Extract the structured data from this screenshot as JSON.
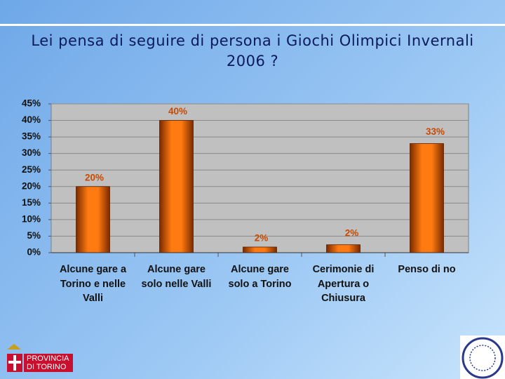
{
  "chart_data": {
    "type": "bar",
    "title": "Lei pensa di seguire di persona i Giochi Olimpici Invernali 2006 ?",
    "categories": [
      "Alcune gare a Torino e nelle Valli",
      "Alcune gare solo nelle Valli",
      "Alcune gare solo a Torino",
      "Cerimonie di Apertura o Chiusura",
      "Penso di no"
    ],
    "values": [
      20,
      40,
      1.7,
      2.4,
      33
    ],
    "value_labels": [
      "20%",
      "40%",
      "2%",
      "2%",
      "33%"
    ],
    "color": "#e8650a",
    "ylim": [
      0,
      45
    ],
    "yticks": [
      {
        "value": 0,
        "label": "0%"
      },
      {
        "value": 5,
        "label": "5%"
      },
      {
        "value": 10,
        "label": "10%"
      },
      {
        "value": 15,
        "label": "15%"
      },
      {
        "value": 20,
        "label": "20%"
      },
      {
        "value": 25,
        "label": "25%"
      },
      {
        "value": 30,
        "label": "30%"
      },
      {
        "value": 35,
        "label": "35%"
      },
      {
        "value": 40,
        "label": "40%"
      },
      {
        "value": 45,
        "label": "45%"
      }
    ],
    "grid": true
  },
  "logo": {
    "line1": "PROVINCIA",
    "line2": "DI TORINO"
  }
}
